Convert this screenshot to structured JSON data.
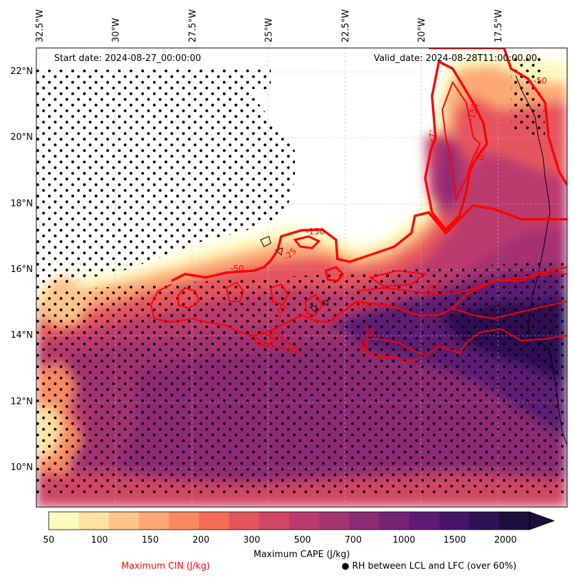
{
  "map": {
    "start_date": "Start date: 2024-08-27_00:00:00",
    "valid_date": "Valid_date: 2024-08-28T11:00:00.00",
    "lon_labels": [
      "32.5°W",
      "30°W",
      "27.5°W",
      "25°W",
      "22.5°W",
      "20°W",
      "17.5°W"
    ],
    "lat_labels": [
      "22°N",
      "20°N",
      "18°N",
      "16°N",
      "14°N",
      "12°N",
      "10°N"
    ],
    "cin_contour_labels": [
      "-150",
      "-25",
      "-50",
      "-50",
      "-150",
      "-25",
      "-250",
      "-150",
      "-50",
      "-100",
      "-50",
      "-200",
      "-250"
    ]
  },
  "colorbar": {
    "ticks": [
      "50",
      "100",
      "150",
      "200",
      "300",
      "500",
      "700",
      "1000",
      "1500",
      "2000"
    ],
    "label": "Maximum CAPE (J/kg)",
    "colors": [
      "#fdfbbe",
      "#fde2a0",
      "#fdc58a",
      "#fda874",
      "#fb8962",
      "#f56c59",
      "#e6555e",
      "#d04665",
      "#bb3b6d",
      "#a43372",
      "#8e2b75",
      "#772375",
      "#5f1b74",
      "#47166a",
      "#2f1155",
      "#1d0f3b"
    ]
  },
  "legend": {
    "cin_label": "Maximum CIN (J/kg)",
    "cin_color": "#ff0000",
    "rh_label": "● RH between LCL and LFC (over 60%)"
  }
}
